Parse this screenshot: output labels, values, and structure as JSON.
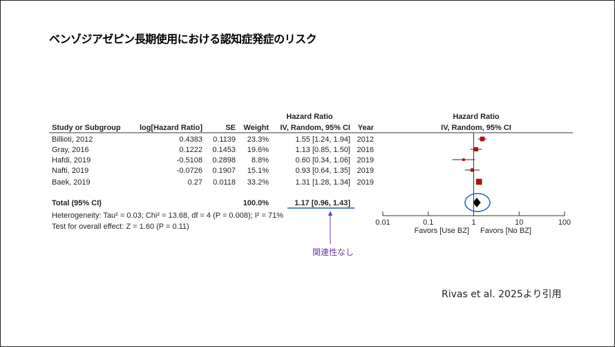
{
  "slide_title": "ベンゾジアゼピン長期使用における認知症発症のリスク",
  "citation": "Rivas et al. 2025より引用",
  "annotation": "関連性なし",
  "chart_data": {
    "type": "forest",
    "headers": {
      "study": "Study or Subgroup",
      "loghr": "log[Hazard Ratio]",
      "se": "SE",
      "weight": "Weight",
      "hr_top": "Hazard Ratio",
      "hr": "IV, Random, 95% CI",
      "year": "Year",
      "plot_top": "Hazard Ratio",
      "plot": "IV, Random, 95% CI"
    },
    "studies": [
      {
        "name": "Billioti, 2012",
        "loghr": "0.4383",
        "se": "0.1139",
        "weight": "23.3%",
        "ci_text": "1.55 [1.24, 1.94]",
        "year": "2012",
        "hr": 1.55,
        "lo": 1.24,
        "hi": 1.94,
        "w": 23.3
      },
      {
        "name": "Gray, 2016",
        "loghr": "0.1222",
        "se": "0.1453",
        "weight": "19.6%",
        "ci_text": "1.13 [0.85, 1.50]",
        "year": "2016",
        "hr": 1.13,
        "lo": 0.85,
        "hi": 1.5,
        "w": 19.6
      },
      {
        "name": "Hafdi, 2019",
        "loghr": "-0.5108",
        "se": "0.2898",
        "weight": "8.8%",
        "ci_text": "0.60 [0.34, 1.06]",
        "year": "2019",
        "hr": 0.6,
        "lo": 0.34,
        "hi": 1.06,
        "w": 8.8
      },
      {
        "name": "Nafti, 2019",
        "loghr": "-0.0726",
        "se": "0.1907",
        "weight": "15.1%",
        "ci_text": "0.93 [0.64, 1.35]",
        "year": "2019",
        "hr": 0.93,
        "lo": 0.64,
        "hi": 1.35,
        "w": 15.1
      },
      {
        "name": "Baek, 2019",
        "loghr": "0.27",
        "se": "0.0118",
        "weight": "33.2%",
        "ci_text": "1.31 [1.28, 1.34]",
        "year": "2019",
        "hr": 1.31,
        "lo": 1.28,
        "hi": 1.34,
        "w": 33.2
      }
    ],
    "total": {
      "name": "Total (95% CI)",
      "weight": "100.0%",
      "ci_text": "1.17 [0.96, 1.43]",
      "hr": 1.17,
      "lo": 0.96,
      "hi": 1.43
    },
    "heterogeneity": "Heterogeneity: Tau² = 0.03; Chi² = 13.68, df = 4 (P = 0.008); I² = 71%",
    "overall_test": "Test for overall effect: Z = 1.60 (P = 0.11)",
    "x_scale": "log",
    "xlim": [
      0.01,
      100
    ],
    "xticks": [
      "0.01",
      "0.1",
      "1",
      "10",
      "100"
    ],
    "favors_left": "Favors [Use BZ]",
    "favors_right": "Favors [No BZ]",
    "colors": {
      "study_marker": "#b01010",
      "total_marker": "#000000",
      "highlight": "#1f5fb0",
      "annotation": "#6a3aa0"
    }
  }
}
